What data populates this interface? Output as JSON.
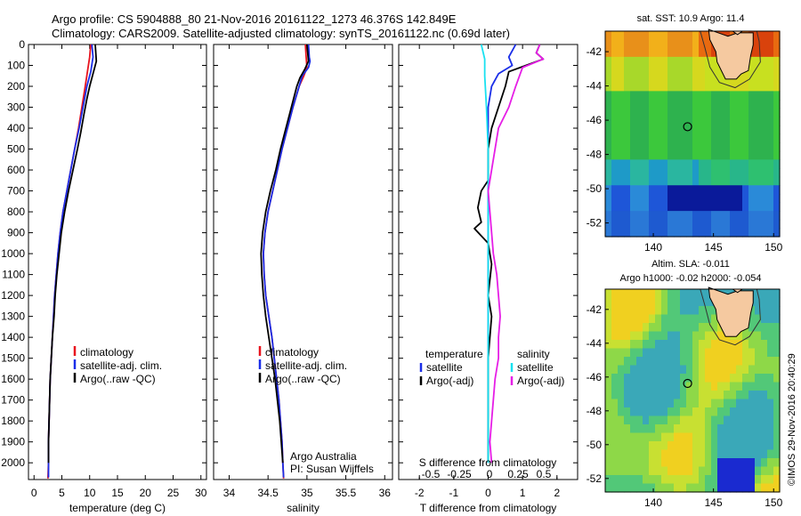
{
  "header": {
    "title_line1": "Argo profile: CS 5904888_80 21-Nov-2016 20161122_1273 46.376S 142.849E",
    "title_line2": "Climatology: CARS2009. Satellite-adjusted climatology: synTS_20161122.nc (0.69d later)"
  },
  "credit": "©IMOS 29-Nov-2016 20:40:29",
  "colors": {
    "climatology": "#e8141e",
    "satellite": "#1a2ee8",
    "argo": "#000000",
    "sal_satellite": "#19e1f0",
    "sal_argo": "#e61ee6"
  },
  "chart_data": [
    {
      "type": "line",
      "xlabel": "temperature (deg C)",
      "ylabel": "",
      "xlim": [
        -1,
        31
      ],
      "ylim": [
        2080,
        0
      ],
      "xticks": [
        "0",
        "5",
        "10",
        "15",
        "20",
        "25",
        "30"
      ],
      "yticks": [
        "0",
        "100",
        "200",
        "300",
        "400",
        "500",
        "600",
        "700",
        "800",
        "900",
        "1000",
        "1100",
        "1200",
        "1300",
        "1400",
        "1500",
        "1600",
        "1700",
        "1800",
        "1900",
        "2000"
      ],
      "legend": [
        "climatology",
        "satellite-adj. clim.",
        "Argo(..raw -QC)"
      ],
      "series": [
        {
          "name": "climatology",
          "color": "climatology",
          "points": [
            [
              10.2,
              0
            ],
            [
              10.0,
              60
            ],
            [
              9.6,
              130
            ],
            [
              9.2,
              200
            ],
            [
              8.6,
              300
            ],
            [
              8.0,
              400
            ],
            [
              7.3,
              500
            ],
            [
              6.6,
              600
            ],
            [
              5.9,
              700
            ],
            [
              5.2,
              800
            ],
            [
              4.7,
              900
            ],
            [
              4.3,
              1000
            ],
            [
              4.0,
              1100
            ],
            [
              3.7,
              1200
            ],
            [
              3.5,
              1300
            ],
            [
              3.3,
              1400
            ],
            [
              3.1,
              1500
            ],
            [
              2.9,
              1600
            ],
            [
              2.8,
              1700
            ],
            [
              2.7,
              1800
            ],
            [
              2.6,
              1900
            ],
            [
              2.6,
              2000
            ],
            [
              2.5,
              2075
            ]
          ]
        },
        {
          "name": "satellite-adj. clim.",
          "color": "satellite",
          "points": [
            [
              10.4,
              0
            ],
            [
              10.6,
              60
            ],
            [
              10.2,
              130
            ],
            [
              9.5,
              200
            ],
            [
              8.8,
              300
            ],
            [
              8.1,
              400
            ],
            [
              7.3,
              500
            ],
            [
              6.6,
              600
            ],
            [
              5.9,
              700
            ],
            [
              5.2,
              800
            ],
            [
              4.7,
              900
            ],
            [
              4.3,
              1000
            ],
            [
              4.0,
              1100
            ],
            [
              3.7,
              1200
            ],
            [
              3.5,
              1300
            ],
            [
              3.3,
              1400
            ],
            [
              3.1,
              1500
            ],
            [
              2.9,
              1600
            ],
            [
              2.8,
              1700
            ],
            [
              2.7,
              1800
            ],
            [
              2.6,
              1900
            ],
            [
              2.6,
              2000
            ],
            [
              2.6,
              2070
            ]
          ]
        },
        {
          "name": "Argo(..raw -QC)",
          "color": "argo",
          "points": [
            [
              11.0,
              0
            ],
            [
              11.1,
              40
            ],
            [
              11.2,
              80
            ],
            [
              10.8,
              120
            ],
            [
              10.4,
              160
            ],
            [
              10.0,
              200
            ],
            [
              9.5,
              260
            ],
            [
              9.0,
              330
            ],
            [
              8.4,
              420
            ],
            [
              7.8,
              500
            ],
            [
              7.0,
              600
            ],
            [
              6.2,
              700
            ],
            [
              5.5,
              800
            ],
            [
              4.9,
              900
            ],
            [
              4.5,
              1000
            ],
            [
              4.1,
              1100
            ],
            [
              3.8,
              1200
            ],
            [
              3.6,
              1300
            ],
            [
              3.3,
              1400
            ],
            [
              3.1,
              1500
            ],
            [
              2.9,
              1600
            ],
            [
              2.8,
              1700
            ],
            [
              2.7,
              1800
            ],
            [
              2.6,
              1900
            ],
            [
              2.6,
              2000
            ]
          ]
        }
      ]
    },
    {
      "type": "line",
      "xlabel": "salinity",
      "ylabel": "",
      "xlim": [
        33.8,
        36.1
      ],
      "ylim": [
        2080,
        0
      ],
      "xticks": [
        "34",
        "34.5",
        "35",
        "35.5",
        "36"
      ],
      "legend": [
        "climatology",
        "satellite-adj. clim.",
        "Argo(..raw -QC)"
      ],
      "annotation": [
        "Argo Australia",
        "PI: Susan Wijffels"
      ],
      "series": [
        {
          "name": "climatology",
          "color": "climatology",
          "points": [
            [
              34.98,
              0
            ],
            [
              34.99,
              60
            ],
            [
              35.0,
              110
            ],
            [
              34.96,
              150
            ],
            [
              34.9,
              200
            ],
            [
              34.82,
              300
            ],
            [
              34.75,
              400
            ],
            [
              34.68,
              500
            ],
            [
              34.62,
              600
            ],
            [
              34.56,
              700
            ],
            [
              34.5,
              800
            ],
            [
              34.46,
              900
            ],
            [
              34.44,
              1000
            ],
            [
              34.45,
              1100
            ],
            [
              34.47,
              1200
            ],
            [
              34.51,
              1300
            ],
            [
              34.55,
              1400
            ],
            [
              34.58,
              1500
            ],
            [
              34.61,
              1600
            ],
            [
              34.64,
              1700
            ],
            [
              34.66,
              1800
            ],
            [
              34.68,
              1900
            ],
            [
              34.69,
              2000
            ],
            [
              34.7,
              2075
            ]
          ]
        },
        {
          "name": "satellite-adj. clim.",
          "color": "satellite",
          "points": [
            [
              35.02,
              0
            ],
            [
              35.03,
              60
            ],
            [
              35.04,
              80
            ],
            [
              35.02,
              110
            ],
            [
              34.94,
              150
            ],
            [
              34.9,
              200
            ],
            [
              34.82,
              300
            ],
            [
              34.75,
              400
            ],
            [
              34.68,
              500
            ],
            [
              34.62,
              600
            ],
            [
              34.56,
              700
            ],
            [
              34.5,
              800
            ],
            [
              34.46,
              900
            ],
            [
              34.44,
              1000
            ],
            [
              34.45,
              1100
            ],
            [
              34.47,
              1200
            ],
            [
              34.51,
              1300
            ],
            [
              34.55,
              1400
            ],
            [
              34.58,
              1500
            ],
            [
              34.61,
              1600
            ],
            [
              34.64,
              1700
            ],
            [
              34.66,
              1800
            ],
            [
              34.68,
              1900
            ],
            [
              34.69,
              2000
            ],
            [
              34.7,
              2070
            ]
          ]
        },
        {
          "name": "Argo(..raw -QC)",
          "color": "argo",
          "points": [
            [
              35.0,
              0
            ],
            [
              35.01,
              40
            ],
            [
              35.02,
              80
            ],
            [
              34.97,
              120
            ],
            [
              34.91,
              160
            ],
            [
              34.87,
              200
            ],
            [
              34.8,
              300
            ],
            [
              34.73,
              400
            ],
            [
              34.66,
              500
            ],
            [
              34.6,
              600
            ],
            [
              34.53,
              700
            ],
            [
              34.47,
              800
            ],
            [
              34.43,
              900
            ],
            [
              34.41,
              1000
            ],
            [
              34.42,
              1100
            ],
            [
              34.44,
              1200
            ],
            [
              34.47,
              1300
            ],
            [
              34.51,
              1400
            ],
            [
              34.55,
              1500
            ],
            [
              34.59,
              1600
            ],
            [
              34.62,
              1700
            ],
            [
              34.65,
              1800
            ],
            [
              34.67,
              1900
            ],
            [
              34.69,
              2000
            ]
          ]
        }
      ]
    },
    {
      "type": "line",
      "xlabel": "T difference from climatology",
      "xlabel2": "S difference from climatology",
      "xlim": [
        -2.6,
        2.6
      ],
      "ylim": [
        2080,
        0
      ],
      "xticks": [
        "-2",
        "-1",
        "0",
        "1",
        "2"
      ],
      "xticks2": [
        "-0.5",
        "-0.25",
        "0",
        "0.25",
        "0.5"
      ],
      "legend_left_title": "temperature",
      "legend_right_title": "salinity",
      "legend_left": [
        "satellite",
        "Argo(-adj)"
      ],
      "legend_right": [
        "satellite",
        "Argo(-adj)"
      ],
      "series": [
        {
          "name": "temperature satellite",
          "color": "satellite",
          "points": [
            [
              0.8,
              0
            ],
            [
              0.7,
              30
            ],
            [
              0.6,
              60
            ],
            [
              0.7,
              100
            ],
            [
              0.3,
              140
            ],
            [
              0.1,
              200
            ],
            [
              0.0,
              300
            ],
            [
              0.0,
              500
            ],
            [
              0.0,
              1000
            ],
            [
              0.0,
              1500
            ],
            [
              0.0,
              2000
            ]
          ]
        },
        {
          "name": "temperature Argo(-adj)",
          "color": "argo",
          "points": [
            [
              1.5,
              0
            ],
            [
              1.4,
              40
            ],
            [
              1.6,
              70
            ],
            [
              1.1,
              100
            ],
            [
              0.6,
              130
            ],
            [
              0.5,
              200
            ],
            [
              0.3,
              300
            ],
            [
              0.1,
              400
            ],
            [
              0.0,
              500
            ],
            [
              0.0,
              650
            ],
            [
              -0.2,
              700
            ],
            [
              -0.3,
              780
            ],
            [
              -0.2,
              850
            ],
            [
              -0.4,
              880
            ],
            [
              0.0,
              950
            ],
            [
              0.1,
              1050
            ],
            [
              0.0,
              1200
            ],
            [
              0.1,
              1300
            ],
            [
              0.0,
              1500
            ],
            [
              0.0,
              1700
            ],
            [
              0.0,
              2000
            ]
          ]
        },
        {
          "name": "salinity satellite",
          "color": "sal_satellite",
          "points": [
            [
              -0.2,
              0
            ],
            [
              -0.1,
              70
            ],
            [
              -0.1,
              150
            ],
            [
              -0.05,
              300
            ],
            [
              0.0,
              500
            ],
            [
              0.0,
              1000
            ],
            [
              0.0,
              1500
            ],
            [
              0.0,
              2000
            ]
          ]
        },
        {
          "name": "salinity Argo(-adj)",
          "color": "sal_argo",
          "points": [
            [
              1.5,
              0
            ],
            [
              1.4,
              40
            ],
            [
              1.6,
              70
            ],
            [
              1.0,
              110
            ],
            [
              0.8,
              200
            ],
            [
              0.6,
              300
            ],
            [
              0.3,
              400
            ],
            [
              0.2,
              500
            ],
            [
              0.1,
              600
            ],
            [
              0.0,
              700
            ],
            [
              0.05,
              800
            ],
            [
              0.15,
              1000
            ],
            [
              0.25,
              1100
            ],
            [
              0.3,
              1200
            ],
            [
              0.35,
              1300
            ],
            [
              0.3,
              1400
            ],
            [
              0.3,
              1500
            ],
            [
              0.2,
              1600
            ],
            [
              0.15,
              1700
            ],
            [
              0.1,
              1800
            ],
            [
              0.05,
              1900
            ],
            [
              0.1,
              2000
            ]
          ]
        }
      ]
    },
    {
      "type": "heatmap",
      "title": "sat. SST: 10.9 Argo: 11.4",
      "xlim": [
        136,
        150.5
      ],
      "ylim": [
        -52.8,
        -40.8
      ],
      "xticks": [
        "140",
        "145",
        "150"
      ],
      "yticks": [
        "-42",
        "-44",
        "-46",
        "-48",
        "-50",
        "-52"
      ],
      "marker": {
        "lon": 142.85,
        "lat": -46.38
      }
    },
    {
      "type": "heatmap",
      "title_line1": "Altim. SLA: -0.011",
      "title_line2": "Argo h1000: -0.02 h2000: -0.054",
      "xlim": [
        136,
        150.5
      ],
      "ylim": [
        -52.8,
        -40.8
      ],
      "xticks": [
        "140",
        "145",
        "150"
      ],
      "yticks": [
        "-42",
        "-44",
        "-46",
        "-48",
        "-50",
        "-52"
      ],
      "marker": {
        "lon": 142.85,
        "lat": -46.38
      }
    }
  ]
}
